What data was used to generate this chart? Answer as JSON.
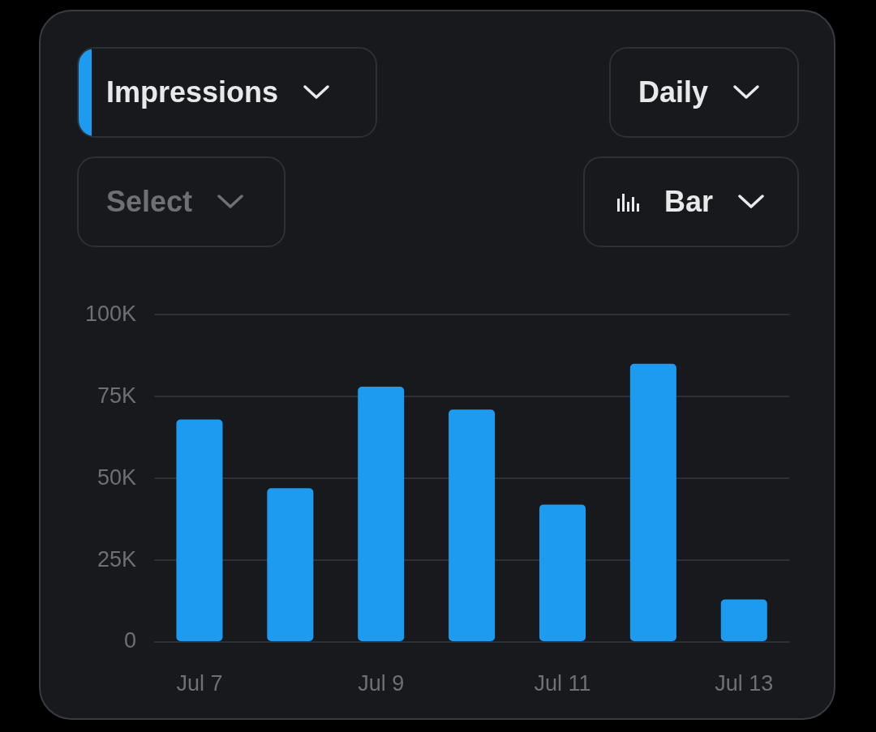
{
  "chart_data": {
    "type": "bar",
    "categories": [
      "Jul 7",
      null,
      "Jul 9",
      null,
      "Jul 11",
      null,
      "Jul 13"
    ],
    "values": [
      68000,
      47000,
      78000,
      71000,
      42000,
      85000,
      13000
    ],
    "color": "#1d9bf0",
    "ylim": [
      0,
      100000
    ],
    "yticks": [
      {
        "value": 0,
        "label": "0"
      },
      {
        "value": 25000,
        "label": "25K"
      },
      {
        "value": 50000,
        "label": "50K"
      },
      {
        "value": 75000,
        "label": "75K"
      },
      {
        "value": 100000,
        "label": "100K"
      }
    ],
    "grid": "y",
    "legend": false,
    "annotations": [
      "Impressions",
      "Daily",
      "Select",
      "Bar"
    ]
  }
}
